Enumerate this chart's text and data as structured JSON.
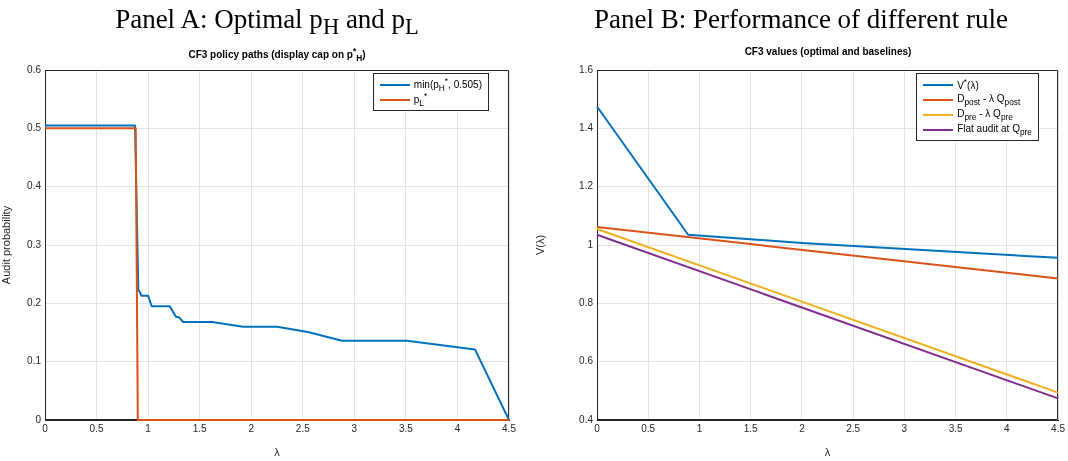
{
  "chart_data": [
    {
      "type": "line",
      "title": "Panel A: Optimal p$_{H}$ and p$_{L}$",
      "subtitle": "CF3 policy paths (display cap on p$^{*}$$_{H}$)",
      "xlabel": "λ",
      "ylabel": "Audit probability",
      "xlim": [
        0,
        4.5
      ],
      "xticks": [
        0,
        0.5,
        1,
        1.5,
        2,
        2.5,
        3,
        3.5,
        4,
        4.5
      ],
      "ylim": [
        0,
        0.6
      ],
      "yticks": [
        0,
        0.1,
        0.2,
        0.3,
        0.4,
        0.5,
        0.6
      ],
      "grid": true,
      "legend": "top right",
      "series": [
        {
          "name": "min(p$_{H}$$^{*}$, 0.505)",
          "color": "#0072bd",
          "x": [
            0,
            0.873,
            0.905,
            0.937,
            1.0,
            1.035,
            1.21,
            1.27,
            1.3,
            1.34,
            1.62,
            1.92,
            2.25,
            2.55,
            2.88,
            3.51,
            4.17,
            4.5
          ],
          "values": [
            0.505,
            0.505,
            0.224,
            0.213,
            0.213,
            0.195,
            0.195,
            0.177,
            0.176,
            0.168,
            0.168,
            0.16,
            0.16,
            0.151,
            0.136,
            0.136,
            0.121,
            0
          ]
        },
        {
          "name": "p$_{L}$$^{*}$",
          "color": "#d95319",
          "x": [
            0,
            0.88,
            0.9,
            4.5
          ],
          "values": [
            0.5,
            0.5,
            0,
            0
          ]
        }
      ]
    },
    {
      "type": "line",
      "title": "Panel B: Performance of different rule",
      "subtitle": "CF3 values (optimal and baselines)",
      "xlabel": "λ",
      "ylabel": "V(λ)",
      "xlim": [
        0,
        4.5
      ],
      "xticks": [
        0,
        0.5,
        1,
        1.5,
        2,
        2.5,
        3,
        3.5,
        4,
        4.5
      ],
      "ylim": [
        0.4,
        1.6
      ],
      "yticks": [
        0.4,
        0.6,
        0.8,
        1,
        1.2,
        1.4,
        1.6
      ],
      "grid": true,
      "legend": "top right",
      "series": [
        {
          "name": "V$^{*}$(λ)",
          "color": "#0072bd",
          "x": [
            0,
            0.89,
            2,
            4.5
          ],
          "values": [
            1.475,
            1.035,
            1.007,
            0.956
          ]
        },
        {
          "name": "D$_{post}$ - λ Q$_{post}$",
          "color": "#d95319",
          "x": [
            0,
            4.5
          ],
          "values": [
            1.062,
            0.885
          ]
        },
        {
          "name": "D$_{pre}$ - λ Q$_{pre}$",
          "color": "#edb120",
          "x": [
            0,
            4.5
          ],
          "values": [
            1.055,
            0.494
          ]
        },
        {
          "name": "Flat audit at Q$_{pre}$",
          "color": "#7e2f8e",
          "x": [
            0,
            4.5
          ],
          "values": [
            1.035,
            0.474
          ]
        }
      ]
    }
  ]
}
